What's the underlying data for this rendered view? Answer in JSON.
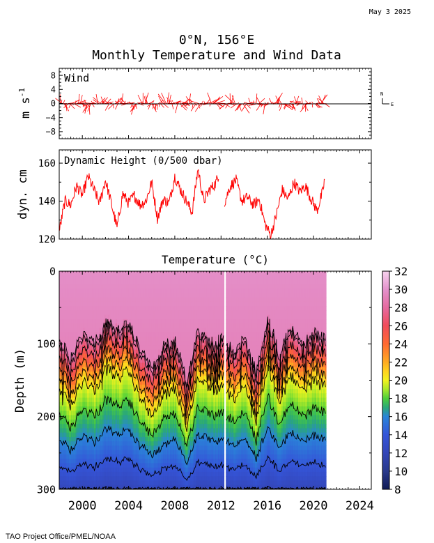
{
  "date_stamp": "May  3 2025",
  "title_line1": "0°N, 156°E",
  "title_line2": "Monthly Temperature and Wind Data",
  "footer": "TAO Project Office/PMEL/NOAA",
  "colors": {
    "series": "#ff0000",
    "axis": "#000000",
    "contour": "#000000"
  },
  "chart_data": [
    {
      "type": "line",
      "panel": "wind",
      "label": "Wind",
      "ylabel": "m s",
      "ylabel_exp": "-1",
      "xlim": [
        1998.0,
        2025.0
      ],
      "ylim": [
        -10,
        10
      ],
      "yticks": [
        "8",
        "4",
        "0",
        "−4",
        "−8"
      ],
      "ytick_values": [
        8,
        4,
        0,
        -4,
        -8
      ],
      "compass_n": "N",
      "compass_e": "E",
      "segments": [
        {
          "start": 1998.0,
          "end": 2011.8
        },
        {
          "start": 2012.3,
          "end": 2021.0
        }
      ]
    },
    {
      "type": "line",
      "panel": "dynamic-height",
      "label": "Dynamic Height (0/500 dbar)",
      "ylabel": "dyn. cm",
      "xlim": [
        1998.0,
        2025.0
      ],
      "ylim": [
        120,
        167
      ],
      "yticks": [
        "160",
        "140",
        "120"
      ],
      "ytick_values": [
        160,
        140,
        120
      ],
      "series": [
        {
          "x": [
            1998.0,
            1998.5,
            1999.0,
            1999.5,
            2000.0,
            2000.5,
            2001.0,
            2001.5,
            2002.0,
            2002.5,
            2003.0,
            2003.5,
            2004.0,
            2004.5,
            2005.0,
            2005.5,
            2006.0,
            2006.5,
            2007.0,
            2007.5,
            2008.0,
            2008.5,
            2009.0,
            2009.5,
            2010.0,
            2010.5,
            2011.0,
            2011.5,
            2011.8
          ],
          "y": [
            124,
            140,
            138,
            148,
            143,
            153,
            146,
            139,
            151,
            139,
            126,
            144,
            139,
            143,
            138,
            140,
            150,
            131,
            141,
            139,
            153,
            146,
            140,
            134,
            157,
            140,
            146,
            149,
            154
          ]
        },
        {
          "x": [
            2012.3,
            2012.8,
            2013.3,
            2013.8,
            2014.3,
            2014.8,
            2015.3,
            2015.8,
            2016.3,
            2016.8,
            2017.3,
            2017.8,
            2018.3,
            2018.8,
            2019.3,
            2019.8,
            2020.3,
            2020.8,
            2021.0
          ],
          "y": [
            139,
            148,
            151,
            140,
            142,
            138,
            141,
            128,
            122,
            133,
            146,
            141,
            150,
            145,
            148,
            141,
            135,
            145,
            153
          ]
        }
      ]
    },
    {
      "type": "heatmap",
      "panel": "temperature",
      "title": "Temperature (°C)",
      "ylabel": "Depth (m)",
      "xlim": [
        1998.0,
        2025.0
      ],
      "ylim": [
        300,
        0
      ],
      "yticks": [
        "0",
        "100",
        "200",
        "300"
      ],
      "ytick_values": [
        0,
        100,
        200,
        300
      ],
      "xticks": [
        "2000",
        "2004",
        "2008",
        "2012",
        "2016",
        "2020",
        "2024"
      ],
      "xtick_values": [
        2000,
        2004,
        2008,
        2012,
        2016,
        2020,
        2024
      ],
      "data_end": 2021.0,
      "data_gap": [
        2012.2,
        2012.4
      ],
      "colorbar": {
        "ticks": [
          "32",
          "30",
          "28",
          "26",
          "24",
          "22",
          "20",
          "18",
          "16",
          "14",
          "12",
          "10",
          "8"
        ],
        "tick_values": [
          32,
          30,
          28,
          26,
          24,
          22,
          20,
          18,
          16,
          14,
          12,
          10,
          8
        ],
        "stops": [
          {
            "value": 8,
            "color": "#0f1a55"
          },
          {
            "value": 10,
            "color": "#2a3a8c"
          },
          {
            "value": 12,
            "color": "#3446b8"
          },
          {
            "value": 14,
            "color": "#3555d8"
          },
          {
            "value": 16,
            "color": "#2a84d8"
          },
          {
            "value": 17,
            "color": "#2aa878"
          },
          {
            "value": 18,
            "color": "#4ecf3a"
          },
          {
            "value": 19,
            "color": "#a8e82a"
          },
          {
            "value": 20,
            "color": "#f2f21e"
          },
          {
            "value": 21,
            "color": "#ffd21e"
          },
          {
            "value": 22,
            "color": "#ffab22"
          },
          {
            "value": 24,
            "color": "#ff6a32"
          },
          {
            "value": 26,
            "color": "#f04c5a"
          },
          {
            "value": 28,
            "color": "#e56aa0"
          },
          {
            "value": 30,
            "color": "#e492cc"
          },
          {
            "value": 32,
            "color": "#f6d2ee"
          }
        ]
      },
      "isotherm_depth_20C": {
        "x": [
          1998.0,
          1999.0,
          2000.0,
          2001.0,
          2002.0,
          2003.0,
          2004.0,
          2005.0,
          2006.0,
          2007.0,
          2008.0,
          2009.0,
          2010.0,
          2011.0,
          2012.0,
          2013.0,
          2014.0,
          2015.0,
          2016.0,
          2017.0,
          2018.0,
          2019.0,
          2020.0,
          2021.0
        ],
        "y": [
          160,
          185,
          150,
          165,
          135,
          145,
          140,
          175,
          200,
          170,
          160,
          215,
          145,
          165,
          160,
          175,
          160,
          205,
          130,
          175,
          145,
          165,
          150,
          160
        ]
      }
    }
  ]
}
